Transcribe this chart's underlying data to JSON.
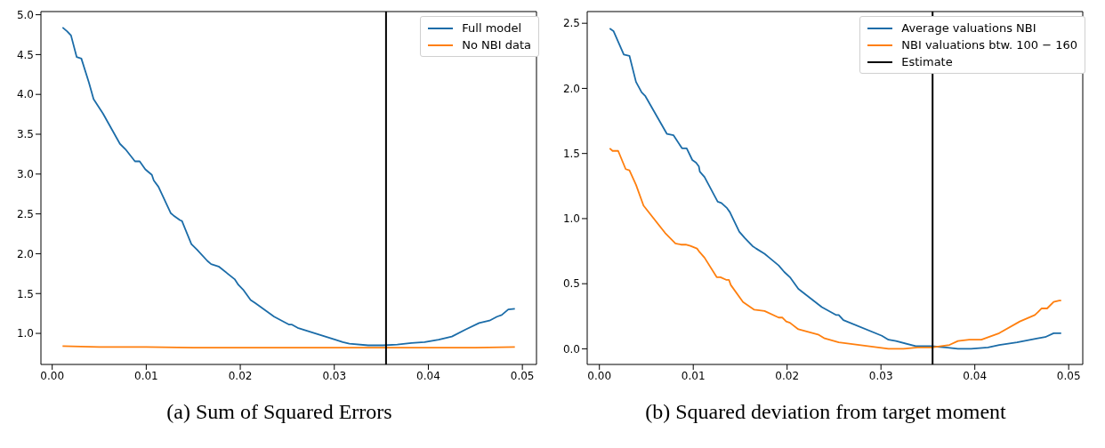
{
  "chart_data": [
    {
      "type": "line",
      "title": "(a) Sum of Squared Errors",
      "xlim": [
        -0.0012,
        0.0515
      ],
      "ylim": [
        0.61,
        5.04
      ],
      "xticks": [
        {
          "value": 0,
          "label": "0.00"
        },
        {
          "value": 0.01,
          "label": "0.01"
        },
        {
          "value": 0.02,
          "label": "0.02"
        },
        {
          "value": 0.03,
          "label": "0.03"
        },
        {
          "value": 0.04,
          "label": "0.04"
        },
        {
          "value": 0.05,
          "label": "0.05"
        }
      ],
      "yticks": [
        {
          "value": 1,
          "label": "1.0"
        },
        {
          "value": 1.5,
          "label": "1.5"
        },
        {
          "value": 2,
          "label": "2.0"
        },
        {
          "value": 2.5,
          "label": "2.5"
        },
        {
          "value": 3,
          "label": "3.0"
        },
        {
          "value": 3.5,
          "label": "3.5"
        },
        {
          "value": 4,
          "label": "4.0"
        },
        {
          "value": 4.5,
          "label": "4.5"
        },
        {
          "value": 5,
          "label": "5.0"
        }
      ],
      "grid": false,
      "legend": "top right",
      "marker": "none",
      "line_style": "solid",
      "series": [
        {
          "name": "Full model",
          "color": "#1b6ca8",
          "x": [
            0.0011,
            0.0016,
            0.002,
            0.0026,
            0.0031,
            0.0039,
            0.0044,
            0.0054,
            0.0072,
            0.0078,
            0.0088,
            0.0093,
            0.0099,
            0.0106,
            0.0108,
            0.0113,
            0.0126,
            0.0129,
            0.0136,
            0.0138,
            0.0148,
            0.0154,
            0.0165,
            0.0169,
            0.0177,
            0.0194,
            0.0198,
            0.0203,
            0.0211,
            0.0216,
            0.0236,
            0.0252,
            0.0255,
            0.0261,
            0.0301,
            0.0309,
            0.0316,
            0.0336,
            0.0352,
            0.0367,
            0.0382,
            0.0396,
            0.0411,
            0.0425,
            0.044,
            0.0454,
            0.0465,
            0.0473,
            0.0478,
            0.0485,
            0.0492
          ],
          "values": [
            4.84,
            4.79,
            4.74,
            4.47,
            4.45,
            4.15,
            3.94,
            3.76,
            3.38,
            3.31,
            3.16,
            3.16,
            3.06,
            2.99,
            2.92,
            2.84,
            2.51,
            2.48,
            2.42,
            2.41,
            2.12,
            2.05,
            1.91,
            1.87,
            1.84,
            1.68,
            1.61,
            1.55,
            1.42,
            1.38,
            1.21,
            1.11,
            1.11,
            1.07,
            0.92,
            0.89,
            0.87,
            0.85,
            0.85,
            0.86,
            0.88,
            0.89,
            0.92,
            0.96,
            1.05,
            1.13,
            1.16,
            1.21,
            1.23,
            1.3,
            1.31
          ]
        },
        {
          "name": "No NBI data",
          "color": "#ff7f0e",
          "x": [
            0.0011,
            0.005,
            0.01,
            0.015,
            0.02,
            0.025,
            0.03,
            0.035,
            0.04,
            0.045,
            0.0492
          ],
          "values": [
            0.84,
            0.83,
            0.83,
            0.82,
            0.82,
            0.82,
            0.82,
            0.82,
            0.82,
            0.82,
            0.83
          ]
        }
      ],
      "ref_lines": [
        {
          "axis": "x",
          "value": 0.0355,
          "color": "#000000"
        }
      ]
    },
    {
      "type": "line",
      "title": "(b) Squared deviation from target moment",
      "xlim": [
        -0.0013,
        0.0515
      ],
      "ylim": [
        -0.12,
        2.59
      ],
      "xticks": [
        {
          "value": 0,
          "label": "0.00"
        },
        {
          "value": 0.01,
          "label": "0.01"
        },
        {
          "value": 0.02,
          "label": "0.02"
        },
        {
          "value": 0.03,
          "label": "0.03"
        },
        {
          "value": 0.04,
          "label": "0.04"
        },
        {
          "value": 0.05,
          "label": "0.05"
        }
      ],
      "yticks": [
        {
          "value": 0,
          "label": "0.0"
        },
        {
          "value": 0.5,
          "label": "0.5"
        },
        {
          "value": 1,
          "label": "1.0"
        },
        {
          "value": 1.5,
          "label": "1.5"
        },
        {
          "value": 2,
          "label": "2.0"
        },
        {
          "value": 2.5,
          "label": "2.5"
        }
      ],
      "grid": false,
      "legend": "top right",
      "marker": "none",
      "line_style": "solid",
      "series": [
        {
          "name": "Average valuations NBI",
          "color": "#1b6ca8",
          "x": [
            0.0011,
            0.0015,
            0.0026,
            0.0032,
            0.0039,
            0.0045,
            0.0049,
            0.0072,
            0.0079,
            0.0088,
            0.0093,
            0.0099,
            0.0103,
            0.0106,
            0.0107,
            0.0112,
            0.0126,
            0.013,
            0.0136,
            0.0139,
            0.0149,
            0.0155,
            0.0163,
            0.0167,
            0.0176,
            0.0181,
            0.0191,
            0.0197,
            0.0203,
            0.0212,
            0.0237,
            0.0252,
            0.0255,
            0.026,
            0.0301,
            0.0308,
            0.0316,
            0.0337,
            0.0354,
            0.0369,
            0.0382,
            0.0396,
            0.0414,
            0.0426,
            0.0445,
            0.0467,
            0.0475,
            0.0484,
            0.0492
          ],
          "values": [
            2.46,
            2.44,
            2.26,
            2.25,
            2.05,
            1.97,
            1.94,
            1.65,
            1.64,
            1.54,
            1.54,
            1.45,
            1.43,
            1.4,
            1.36,
            1.32,
            1.13,
            1.12,
            1.08,
            1.05,
            0.9,
            0.85,
            0.79,
            0.77,
            0.73,
            0.7,
            0.64,
            0.59,
            0.55,
            0.46,
            0.32,
            0.26,
            0.26,
            0.22,
            0.1,
            0.07,
            0.06,
            0.02,
            0.02,
            0.01,
            0,
            0,
            0.01,
            0.03,
            0.05,
            0.08,
            0.09,
            0.12,
            0.12
          ]
        },
        {
          "name": "NBI valuations btw. 100 − 160",
          "color": "#ff7f0e",
          "x": [
            0.0011,
            0.0014,
            0.002,
            0.0028,
            0.0032,
            0.0039,
            0.0047,
            0.007,
            0.0081,
            0.0087,
            0.0092,
            0.0097,
            0.0104,
            0.0106,
            0.0112,
            0.0125,
            0.0129,
            0.0135,
            0.0138,
            0.014,
            0.0153,
            0.0165,
            0.0176,
            0.0191,
            0.0195,
            0.0199,
            0.0203,
            0.0212,
            0.0233,
            0.024,
            0.0255,
            0.0308,
            0.0324,
            0.0339,
            0.0344,
            0.0354,
            0.0373,
            0.0382,
            0.0394,
            0.0407,
            0.0426,
            0.0448,
            0.0464,
            0.0467,
            0.0471,
            0.0477,
            0.0484,
            0.049,
            0.0492
          ],
          "values": [
            1.54,
            1.52,
            1.52,
            1.38,
            1.37,
            1.26,
            1.1,
            0.89,
            0.81,
            0.8,
            0.8,
            0.79,
            0.77,
            0.75,
            0.7,
            0.55,
            0.55,
            0.53,
            0.53,
            0.49,
            0.36,
            0.3,
            0.29,
            0.24,
            0.24,
            0.21,
            0.2,
            0.15,
            0.11,
            0.08,
            0.05,
            0,
            0,
            0.01,
            0.01,
            0.01,
            0.03,
            0.06,
            0.07,
            0.07,
            0.12,
            0.21,
            0.26,
            0.28,
            0.31,
            0.31,
            0.36,
            0.37,
            0.37
          ]
        }
      ],
      "ref_lines": [
        {
          "axis": "x",
          "value": 0.0355,
          "label": "Estimate",
          "color": "#000000"
        }
      ]
    }
  ]
}
